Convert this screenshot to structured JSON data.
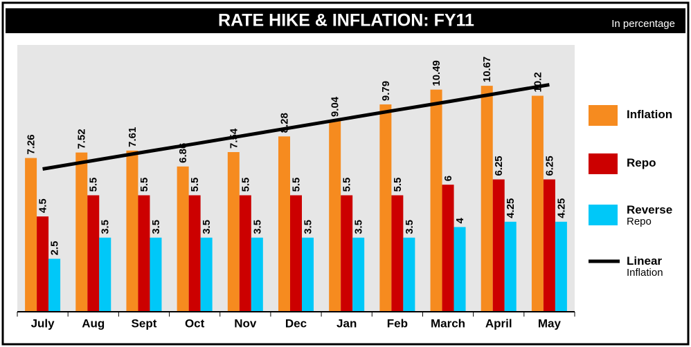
{
  "chart_data": {
    "type": "bar",
    "title": "RATE HIKE & INFLATION: FY11",
    "subtitle": "In percentage",
    "categories": [
      "July",
      "Aug",
      "Sept",
      "Oct",
      "Nov",
      "Dec",
      "Jan",
      "Feb",
      "March",
      "April",
      "May"
    ],
    "series": [
      {
        "name": "Inflation",
        "color": "#f68b1f",
        "values": [
          7.26,
          7.52,
          7.61,
          6.86,
          7.54,
          8.28,
          9.04,
          9.79,
          10.49,
          10.67,
          10.2
        ]
      },
      {
        "name": "Repo",
        "color": "#cc0000",
        "values": [
          4.5,
          5.5,
          5.5,
          5.5,
          5.5,
          5.5,
          5.5,
          5.5,
          6,
          6.25,
          6.25
        ]
      },
      {
        "name": "Reverse Repo",
        "color": "#00c8f8",
        "values": [
          2.5,
          3.5,
          3.5,
          3.5,
          3.5,
          3.5,
          3.5,
          3.5,
          4,
          4.25,
          4.25
        ]
      },
      {
        "name": "Linear Inflation",
        "color": "#000000",
        "type": "line",
        "values": [
          6.74,
          7.14,
          7.54,
          7.93,
          8.33,
          8.73,
          9.13,
          9.53,
          9.92,
          10.32,
          10.72
        ]
      }
    ],
    "ylim": [
      0,
      12.6
    ],
    "grid": false,
    "legend": "right"
  }
}
